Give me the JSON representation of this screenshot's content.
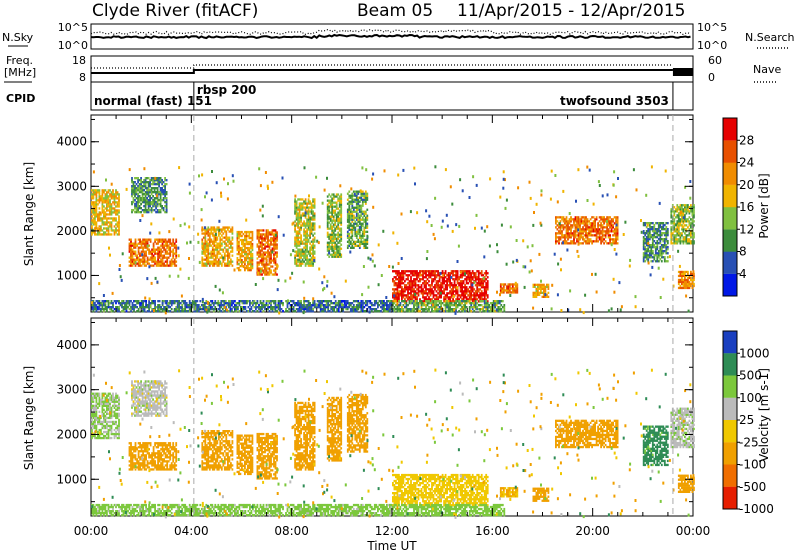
{
  "chart_data": {
    "type": "heatmap",
    "title": {
      "station": "Clyde River (fitACF)",
      "beam": "Beam 05",
      "dates": "11/Apr/2015 - 12/Apr/2015"
    },
    "top_panels": {
      "nsky_label": "N.Sky",
      "nsky_ticks": [
        "10^5",
        "10^0"
      ],
      "nsearch_label": "N.Search",
      "nsearch_ticks": [
        "10^5",
        "10^0"
      ],
      "freq_label_1": "Freq.",
      "freq_label_2": "[MHz]",
      "freq_ticks": [
        "18",
        "8"
      ],
      "nave_label": "Nave",
      "nave_ticks": [
        "60",
        "0"
      ],
      "cpid_label": "CPID",
      "modes": [
        {
          "name": "normal (fast) 151",
          "start_hour": 0.0
        },
        {
          "name": "rbsp 200",
          "start_hour": 4.1
        },
        {
          "name": "twofsound 3503",
          "start_hour": 23.2
        }
      ]
    },
    "x_axis": {
      "label": "Time UT",
      "range_hours": [
        0,
        24
      ],
      "tick_labels": [
        "00:00",
        "04:00",
        "08:00",
        "12:00",
        "16:00",
        "20:00",
        "00:00"
      ]
    },
    "y_axis": {
      "label": "Slant Range [km]",
      "range_km": [
        180,
        4600
      ],
      "tick_labels": [
        "1000",
        "2000",
        "3000",
        "4000"
      ]
    },
    "power_panel": {
      "colorbar_label": "Power [dB]",
      "colorbar_ticks": [
        "4",
        "8",
        "12",
        "16",
        "20",
        "24",
        "28"
      ],
      "colors": [
        "#0018e6",
        "#2850b4",
        "#3c8c3c",
        "#80c040",
        "#f0b400",
        "#f08c00",
        "#e85000",
        "#e60000"
      ]
    },
    "velocity_panel": {
      "colorbar_label": "Velocity [m s-1]",
      "colorbar_ticks": [
        "1000",
        "500",
        "100",
        "25",
        "-25",
        "-100",
        "-500",
        "-1000"
      ],
      "colors": [
        "#1a3fc0",
        "#2e8c55",
        "#7cc83c",
        "#bbbbbb",
        "#f0c800",
        "#f0a000",
        "#f06e00",
        "#e61e00"
      ]
    },
    "echo_regions": [
      {
        "t0": 0.0,
        "t1": 1.1,
        "r0": 1900,
        "r1": 2900,
        "power": 18,
        "velocity": 30
      },
      {
        "t0": 1.5,
        "t1": 3.4,
        "r0": 1200,
        "r1": 1800,
        "power": 24,
        "velocity": -200
      },
      {
        "t0": 1.6,
        "t1": 3.0,
        "r0": 2400,
        "r1": 3200,
        "power": 10,
        "velocity": 0
      },
      {
        "t0": 4.4,
        "t1": 5.6,
        "r0": 1200,
        "r1": 2100,
        "power": 20,
        "velocity": -300
      },
      {
        "t0": 5.8,
        "t1": 6.4,
        "r0": 1100,
        "r1": 2000,
        "power": 20,
        "velocity": -200
      },
      {
        "t0": 6.6,
        "t1": 7.4,
        "r0": 1000,
        "r1": 2000,
        "power": 24,
        "velocity": -300
      },
      {
        "t0": 8.1,
        "t1": 8.9,
        "r0": 1200,
        "r1": 2700,
        "power": 16,
        "velocity": -200
      },
      {
        "t0": 9.4,
        "t1": 10.0,
        "r0": 1400,
        "r1": 2800,
        "power": 14,
        "velocity": -250
      },
      {
        "t0": 10.2,
        "t1": 11.0,
        "r0": 1600,
        "r1": 2900,
        "power": 12,
        "velocity": -200
      },
      {
        "t0": 12.0,
        "t1": 15.8,
        "r0": 400,
        "r1": 1100,
        "power": 30,
        "velocity": -60
      },
      {
        "t0": 16.3,
        "t1": 17.0,
        "r0": 600,
        "r1": 800,
        "power": 24,
        "velocity": -100
      },
      {
        "t0": 17.6,
        "t1": 18.2,
        "r0": 500,
        "r1": 800,
        "power": 20,
        "velocity": -150
      },
      {
        "t0": 18.5,
        "t1": 21.0,
        "r0": 1700,
        "r1": 2300,
        "power": 24,
        "velocity": -350
      },
      {
        "t0": 22.0,
        "t1": 23.0,
        "r0": 1300,
        "r1": 2200,
        "power": 10,
        "velocity": 150
      },
      {
        "t0": 23.1,
        "t1": 24.0,
        "r0": 1700,
        "r1": 2600,
        "power": 14,
        "velocity": 10
      },
      {
        "t0": 23.4,
        "t1": 24.0,
        "r0": 700,
        "r1": 1100,
        "power": 22,
        "velocity": -200
      },
      {
        "t0": 0.0,
        "t1": 12.0,
        "r0": 180,
        "r1": 420,
        "power": 8,
        "velocity": 50
      },
      {
        "t0": 12.0,
        "t1": 16.5,
        "r0": 180,
        "r1": 450,
        "power": 12,
        "velocity": 60
      }
    ]
  }
}
